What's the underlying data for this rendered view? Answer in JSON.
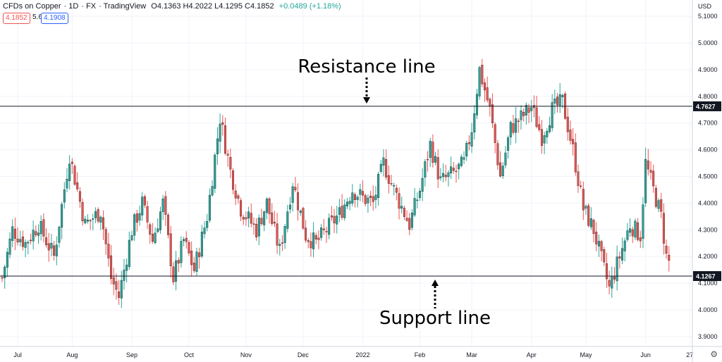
{
  "header": {
    "symbol": "CFDs on Copper",
    "interval": "1D",
    "exchange": "FX",
    "source": "TradingView",
    "ohlc": "O4.1363 H4.2022 L4.1295 C4.1852",
    "change": "+0.0489 (+1.18%)",
    "sell": "4.1852",
    "spread": "5.6",
    "buy": "4.1908"
  },
  "currency": "USD",
  "settings_icon": "gear-icon",
  "chart_data": {
    "type": "candlestick",
    "ylim": [
      3.85,
      5.13
    ],
    "yticks": [
      "3.9000",
      "4.0000",
      "4.1000",
      "4.2000",
      "4.3000",
      "4.4000",
      "4.5000",
      "4.6000",
      "4.7000",
      "4.8000",
      "4.9000",
      "5.0000",
      "5.1000"
    ],
    "months": [
      {
        "label": "Jul",
        "day": 6
      },
      {
        "label": "Aug",
        "day": 27
      },
      {
        "label": "Sep",
        "day": 50
      },
      {
        "label": "Oct",
        "day": 72
      },
      {
        "label": "Nov",
        "day": 94
      },
      {
        "label": "Dec",
        "day": 116
      },
      {
        "label": "2022",
        "day": 139
      },
      {
        "label": "Feb",
        "day": 161
      },
      {
        "label": "Mar",
        "day": 181
      },
      {
        "label": "Apr",
        "day": 204
      },
      {
        "label": "May",
        "day": 225
      },
      {
        "label": "Jun",
        "day": 248
      },
      {
        "label": "27",
        "day": 265
      }
    ],
    "resistance": {
      "value": 4.7627,
      "label": "4.7627",
      "annotation": "Resistance line"
    },
    "support": {
      "value": 4.1267,
      "label": "4.1267",
      "annotation": "Support line"
    },
    "anchors": [
      [
        0,
        4.12
      ],
      [
        4,
        4.3
      ],
      [
        9,
        4.25
      ],
      [
        14,
        4.32
      ],
      [
        20,
        4.2
      ],
      [
        26,
        4.58
      ],
      [
        32,
        4.32
      ],
      [
        38,
        4.37
      ],
      [
        42,
        4.12
      ],
      [
        45,
        4.05
      ],
      [
        50,
        4.3
      ],
      [
        54,
        4.4
      ],
      [
        58,
        4.26
      ],
      [
        62,
        4.4
      ],
      [
        66,
        4.12
      ],
      [
        70,
        4.26
      ],
      [
        74,
        4.15
      ],
      [
        79,
        4.35
      ],
      [
        84,
        4.72
      ],
      [
        88,
        4.52
      ],
      [
        92,
        4.38
      ],
      [
        98,
        4.3
      ],
      [
        102,
        4.4
      ],
      [
        107,
        4.22
      ],
      [
        112,
        4.48
      ],
      [
        117,
        4.28
      ],
      [
        121,
        4.25
      ],
      [
        125,
        4.3
      ],
      [
        130,
        4.36
      ],
      [
        135,
        4.45
      ],
      [
        139,
        4.42
      ],
      [
        143,
        4.4
      ],
      [
        147,
        4.55
      ],
      [
        151,
        4.45
      ],
      [
        157,
        4.32
      ],
      [
        161,
        4.45
      ],
      [
        165,
        4.62
      ],
      [
        169,
        4.48
      ],
      [
        175,
        4.52
      ],
      [
        178,
        4.55
      ],
      [
        181,
        4.68
      ],
      [
        184,
        4.9
      ],
      [
        188,
        4.75
      ],
      [
        192,
        4.5
      ],
      [
        196,
        4.68
      ],
      [
        200,
        4.72
      ],
      [
        204,
        4.76
      ],
      [
        208,
        4.65
      ],
      [
        212,
        4.75
      ],
      [
        216,
        4.78
      ],
      [
        220,
        4.6
      ],
      [
        224,
        4.38
      ],
      [
        228,
        4.3
      ],
      [
        232,
        4.15
      ],
      [
        234,
        4.08
      ],
      [
        238,
        4.2
      ],
      [
        242,
        4.32
      ],
      [
        246,
        4.28
      ],
      [
        248,
        4.55
      ],
      [
        251,
        4.45
      ],
      [
        254,
        4.35
      ],
      [
        256,
        4.2
      ],
      [
        257,
        4.18
      ]
    ],
    "style": {
      "up_color": "#26a69a",
      "down_color": "#ef5350",
      "grid": true
    }
  }
}
